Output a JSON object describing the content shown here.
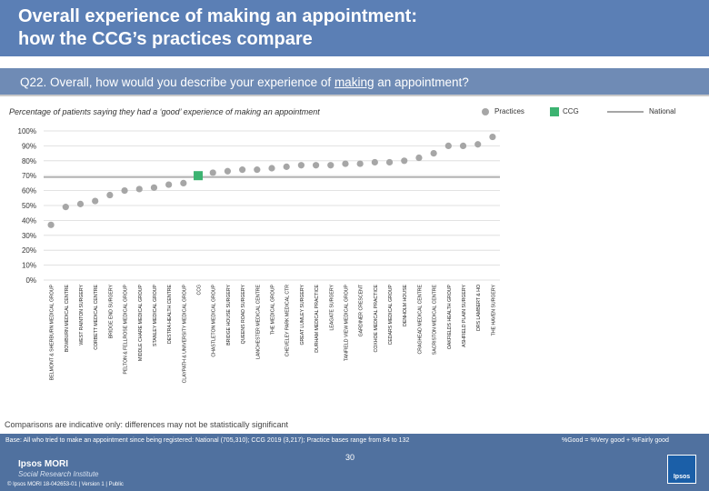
{
  "header": {
    "title_line1": "Overall experience of making an appointment:",
    "title_line2": "how the CCG’s practices compare"
  },
  "question": {
    "prefix": "Q22. Overall, how would you describe your experience of ",
    "underlined": "making",
    "suffix": " an appointment?"
  },
  "subtitle": "Percentage of patients saying they had a ‘good’ experience of making an appointment",
  "legend": {
    "practices": "Practices",
    "ccg": "CCG",
    "national": "National"
  },
  "colors": {
    "practice": "#a6a6a6",
    "ccg": "#3cb371",
    "national": "#a6a6a6",
    "grid": "#d9d9d9",
    "header": "#5b7fb5"
  },
  "chart_data": {
    "type": "scatter",
    "title": "Percentage of patients saying they had a ‘good’ experience of making an appointment",
    "ylim": [
      0,
      100
    ],
    "yticks": [
      "0%",
      "10%",
      "20%",
      "30%",
      "40%",
      "50%",
      "60%",
      "70%",
      "80%",
      "90%",
      "100%"
    ],
    "categories": [
      "BELMONT & SHERBURN MEDICAL GROUP",
      "BOWBURN MEDICAL CENTRE",
      "WEST RAINTON SURGERY",
      "CORBETT MEDICAL CENTRE",
      "BRIDGE END SURGERY",
      "PELTON & FELLROSE MEDICAL GROUP",
      "MIDDLE CHARE MEDICAL GROUP",
      "STANLEY MEDICAL GROUP",
      "DESTRA HEALTH CENTRE",
      "CLAYPATH & UNIVERSITY MEDICAL GROUP",
      "CCG",
      "CHASTLETON MEDICAL GROUP",
      "BRIDGE HOUSE SURGERY",
      "QUEENS ROAD SURGERY",
      "LANCHESTER MEDICAL CENTRE",
      "THE MEDICAL GROUP",
      "CHEVELEY PARK MEDICAL CTR",
      "GREAT LUMLEY SURGERY",
      "DURHAM MEDICAL PRACTICE",
      "LEAGATE SURGERY",
      "TANFIELD VIEW MEDICAL GROUP",
      "GARDINER CRESCENT",
      "COXHOE MEDICAL PRACTICE",
      "CEDARS MEDICAL GROUP",
      "DENHOLM HOUSE",
      "CRAGHEAD MEDICAL CENTRE",
      "SACRISTON MEDICAL CENTRE",
      "OAKFIELDS HEALTH GROUP",
      "ASHFIELD PLAIN SURGERY",
      "DRS LAMBERT & HO",
      "THE HAVEN SURGERY"
    ],
    "values": [
      37,
      49,
      51,
      53,
      57,
      60,
      61,
      62,
      64,
      65,
      70,
      72,
      73,
      74,
      74,
      75,
      76,
      77,
      77,
      77,
      78,
      78,
      79,
      79,
      80,
      82,
      85,
      90,
      90,
      91,
      96
    ],
    "ccg_category": "CCG",
    "national_line": [
      {
        "category": "BELMONT & SHERBURN MEDICAL GROUP",
        "value": 69
      },
      {
        "category": "THE HAVEN SURGERY",
        "value": 69
      }
    ]
  },
  "footnote": "Comparisons are indicative only: differences may not be statistically significant",
  "footer": {
    "base": "Base: All who tried to make an appointment since being registered: National (705,310); CCG 2019 (3,217); Practice bases range from 84 to 132",
    "formula": "%Good = %Very good + %Fairly good",
    "page": "30",
    "brand": "Ipsos MORI",
    "brand_sub": "Social Research Institute",
    "copyright": "© Ipsos MORI    18-042653-01 | Version 1 | Public",
    "logo_text": "Ipsos"
  }
}
